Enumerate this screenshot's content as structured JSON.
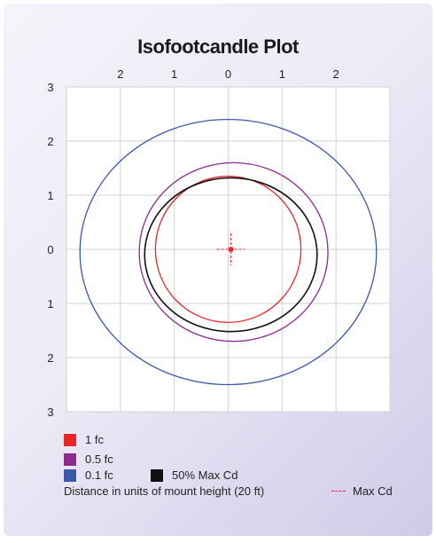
{
  "chart_data": {
    "type": "line",
    "title": "Isofootcandle Plot",
    "x_tick_labels": [
      "2",
      "1",
      "0",
      "1",
      "2"
    ],
    "x_tick_values": [
      -2,
      -1,
      0,
      1,
      2
    ],
    "y_tick_labels": [
      "3",
      "2",
      "1",
      "0",
      "1",
      "2",
      "3"
    ],
    "y_tick_values": [
      3,
      2,
      1,
      0,
      -1,
      -2,
      -3
    ],
    "xlim": [
      -3,
      3
    ],
    "ylim": [
      -3,
      3
    ],
    "grid": true,
    "xlabel": "Distance in units of mount height (20 ft)",
    "series": [
      {
        "name": "1 fc",
        "color": "#e8262a",
        "shape": "ellipse",
        "center": [
          0,
          0
        ],
        "rx": 1.35,
        "ry": 1.35
      },
      {
        "name": "0.5 fc",
        "color": "#8b2d8e",
        "shape": "ellipse",
        "center": [
          0.1,
          -0.05
        ],
        "rx": 1.75,
        "ry": 1.65
      },
      {
        "name": "0.1 fc",
        "color": "#3a58a6",
        "shape": "ellipse",
        "center": [
          0,
          -0.05
        ],
        "rx": 2.75,
        "ry": 2.45
      },
      {
        "name": "50% Max Cd",
        "color": "#111111",
        "shape": "ellipse",
        "center": [
          0.05,
          -0.1
        ],
        "rx": 1.6,
        "ry": 1.42
      }
    ],
    "max_cd": {
      "name": "Max Cd",
      "color": "#e8262a",
      "point": [
        0.05,
        0
      ]
    }
  },
  "legend": {
    "fc1": "1 fc",
    "fc05": "0.5 fc",
    "fc01": "0.1 fc",
    "maxcd50": "50% Max Cd",
    "maxcd": "Max Cd"
  }
}
